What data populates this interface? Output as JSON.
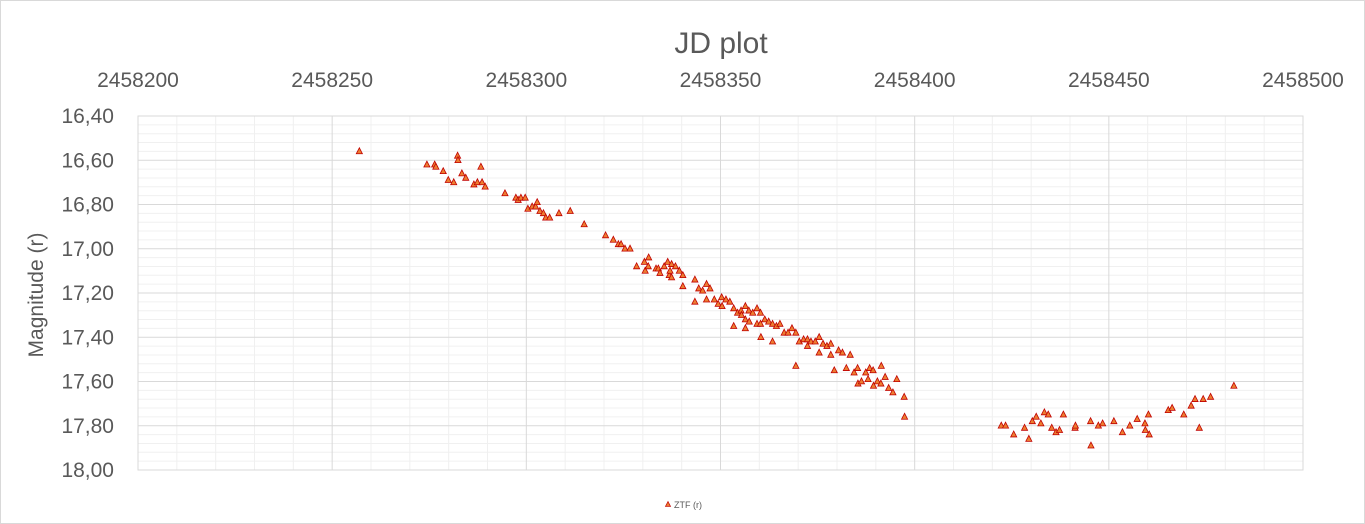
{
  "chart_data": {
    "type": "scatter",
    "title": "JD plot",
    "xlabel": "",
    "ylabel": "Magnitude (r)",
    "x_axis_position": "top",
    "y_axis_reversed": true,
    "xlim": [
      2458200,
      2458500
    ],
    "ylim": [
      16.4,
      18.0
    ],
    "x_ticks": [
      2458200,
      2458250,
      2458300,
      2458350,
      2458400,
      2458450,
      2458500
    ],
    "x_tick_labels": [
      "2458200",
      "2458250",
      "2458300",
      "2458350",
      "2458400",
      "2458450",
      "2458500"
    ],
    "y_ticks": [
      16.4,
      16.6,
      16.8,
      17.0,
      17.2,
      17.4,
      17.6,
      17.8,
      18.0
    ],
    "y_tick_labels": [
      "16,40",
      "16,60",
      "16,80",
      "17,00",
      "17,20",
      "17,40",
      "17,60",
      "17,80",
      "18,00"
    ],
    "grid": true,
    "legend_position": "bottom",
    "series": [
      {
        "name": "ZTF (r)",
        "marker": "triangle",
        "color": "#ed7d31",
        "edge_color": "#c00000",
        "points": [
          [
            2458257.0,
            16.56
          ],
          [
            2458274.4,
            16.62
          ],
          [
            2458276.4,
            16.62
          ],
          [
            2458276.7,
            16.63
          ],
          [
            2458278.6,
            16.65
          ],
          [
            2458279.9,
            16.69
          ],
          [
            2458281.3,
            16.7
          ],
          [
            2458282.3,
            16.58
          ],
          [
            2458282.4,
            16.6
          ],
          [
            2458283.4,
            16.66
          ],
          [
            2458284.4,
            16.68
          ],
          [
            2458286.5,
            16.71
          ],
          [
            2458287.4,
            16.7
          ],
          [
            2458288.3,
            16.63
          ],
          [
            2458288.6,
            16.7
          ],
          [
            2458289.4,
            16.72
          ],
          [
            2458294.5,
            16.75
          ],
          [
            2458297.3,
            16.77
          ],
          [
            2458297.9,
            16.78
          ],
          [
            2458298.6,
            16.77
          ],
          [
            2458299.7,
            16.77
          ],
          [
            2458300.4,
            16.82
          ],
          [
            2458301.5,
            16.81
          ],
          [
            2458302.4,
            16.81
          ],
          [
            2458302.8,
            16.79
          ],
          [
            2458303.5,
            16.83
          ],
          [
            2458304.4,
            16.84
          ],
          [
            2458305.0,
            16.86
          ],
          [
            2458306.0,
            16.86
          ],
          [
            2458308.4,
            16.84
          ],
          [
            2458311.3,
            16.83
          ],
          [
            2458314.9,
            16.89
          ],
          [
            2458320.4,
            16.94
          ],
          [
            2458322.4,
            16.96
          ],
          [
            2458323.7,
            16.98
          ],
          [
            2458324.4,
            16.98
          ],
          [
            2458325.4,
            17.0
          ],
          [
            2458326.7,
            17.0
          ],
          [
            2458328.4,
            17.08
          ],
          [
            2458330.4,
            17.06
          ],
          [
            2458330.6,
            17.1
          ],
          [
            2458331.5,
            17.04
          ],
          [
            2458331.4,
            17.08
          ],
          [
            2458333.4,
            17.09
          ],
          [
            2458334.0,
            17.09
          ],
          [
            2458334.4,
            17.11
          ],
          [
            2458335.5,
            17.08
          ],
          [
            2458336.4,
            17.06
          ],
          [
            2458336.8,
            17.12
          ],
          [
            2458337.0,
            17.1
          ],
          [
            2458337.4,
            17.07
          ],
          [
            2458337.4,
            17.13
          ],
          [
            2458338.4,
            17.08
          ],
          [
            2458339.4,
            17.1
          ],
          [
            2458340.3,
            17.12
          ],
          [
            2458340.3,
            17.17
          ],
          [
            2458343.4,
            17.14
          ],
          [
            2458343.4,
            17.24
          ],
          [
            2458344.4,
            17.18
          ],
          [
            2458345.4,
            17.19
          ],
          [
            2458346.4,
            17.16
          ],
          [
            2458346.4,
            17.23
          ],
          [
            2458347.3,
            17.18
          ],
          [
            2458348.4,
            17.23
          ],
          [
            2458349.4,
            17.25
          ],
          [
            2458350.3,
            17.22
          ],
          [
            2458350.4,
            17.26
          ],
          [
            2458351.4,
            17.23
          ],
          [
            2458352.4,
            17.24
          ],
          [
            2458353.4,
            17.35
          ],
          [
            2458353.4,
            17.27
          ],
          [
            2458354.4,
            17.29
          ],
          [
            2458355.3,
            17.28
          ],
          [
            2458355.4,
            17.3
          ],
          [
            2458356.4,
            17.26
          ],
          [
            2458356.4,
            17.32
          ],
          [
            2458356.4,
            17.36
          ],
          [
            2458357.3,
            17.28
          ],
          [
            2458357.4,
            17.33
          ],
          [
            2458358.3,
            17.29
          ],
          [
            2458359.4,
            17.27
          ],
          [
            2458359.4,
            17.34
          ],
          [
            2458360.3,
            17.29
          ],
          [
            2458360.3,
            17.34
          ],
          [
            2458360.4,
            17.4
          ],
          [
            2458361.4,
            17.32
          ],
          [
            2458362.4,
            17.33
          ],
          [
            2458363.4,
            17.42
          ],
          [
            2458363.4,
            17.34
          ],
          [
            2458364.4,
            17.35
          ],
          [
            2458365.3,
            17.34
          ],
          [
            2458366.4,
            17.38
          ],
          [
            2458367.4,
            17.38
          ],
          [
            2458368.4,
            17.36
          ],
          [
            2458369.4,
            17.38
          ],
          [
            2458369.4,
            17.53
          ],
          [
            2458370.3,
            17.42
          ],
          [
            2458371.4,
            17.41
          ],
          [
            2458372.4,
            17.41
          ],
          [
            2458372.4,
            17.44
          ],
          [
            2458373.3,
            17.42
          ],
          [
            2458374.4,
            17.42
          ],
          [
            2458375.4,
            17.4
          ],
          [
            2458375.4,
            17.47
          ],
          [
            2458376.4,
            17.43
          ],
          [
            2458377.4,
            17.44
          ],
          [
            2458378.4,
            17.43
          ],
          [
            2458378.4,
            17.48
          ],
          [
            2458379.3,
            17.55
          ],
          [
            2458380.4,
            17.46
          ],
          [
            2458381.4,
            17.47
          ],
          [
            2458382.4,
            17.54
          ],
          [
            2458383.4,
            17.48
          ],
          [
            2458384.4,
            17.56
          ],
          [
            2458385.3,
            17.54
          ],
          [
            2458385.4,
            17.61
          ],
          [
            2458386.3,
            17.6
          ],
          [
            2458387.4,
            17.56
          ],
          [
            2458388.0,
            17.59
          ],
          [
            2458388.4,
            17.54
          ],
          [
            2458389.3,
            17.55
          ],
          [
            2458389.4,
            17.62
          ],
          [
            2458390.4,
            17.6
          ],
          [
            2458391.3,
            17.61
          ],
          [
            2458391.4,
            17.53
          ],
          [
            2458392.4,
            17.58
          ],
          [
            2458393.3,
            17.63
          ],
          [
            2458394.4,
            17.65
          ],
          [
            2458395.4,
            17.59
          ],
          [
            2458397.3,
            17.67
          ],
          [
            2458397.4,
            17.76
          ],
          [
            2458422.3,
            17.8
          ],
          [
            2458423.4,
            17.8
          ],
          [
            2458425.5,
            17.84
          ],
          [
            2458428.3,
            17.81
          ],
          [
            2458429.4,
            17.86
          ],
          [
            2458430.3,
            17.78
          ],
          [
            2458431.3,
            17.76
          ],
          [
            2458432.5,
            17.79
          ],
          [
            2458433.4,
            17.74
          ],
          [
            2458434.4,
            17.75
          ],
          [
            2458435.3,
            17.81
          ],
          [
            2458436.4,
            17.83
          ],
          [
            2458437.3,
            17.82
          ],
          [
            2458438.3,
            17.75
          ],
          [
            2458441.3,
            17.81
          ],
          [
            2458441.4,
            17.8
          ],
          [
            2458445.3,
            17.78
          ],
          [
            2458445.4,
            17.89
          ],
          [
            2458447.3,
            17.8
          ],
          [
            2458448.4,
            17.79
          ],
          [
            2458451.3,
            17.78
          ],
          [
            2458453.5,
            17.83
          ],
          [
            2458455.4,
            17.8
          ],
          [
            2458457.3,
            17.77
          ],
          [
            2458459.3,
            17.79
          ],
          [
            2458459.4,
            17.82
          ],
          [
            2458460.2,
            17.75
          ],
          [
            2458460.4,
            17.84
          ],
          [
            2458465.3,
            17.73
          ],
          [
            2458466.3,
            17.72
          ],
          [
            2458469.3,
            17.75
          ],
          [
            2458471.2,
            17.71
          ],
          [
            2458472.2,
            17.68
          ],
          [
            2458473.3,
            17.81
          ],
          [
            2458474.3,
            17.68
          ],
          [
            2458476.2,
            17.67
          ],
          [
            2458482.2,
            17.62
          ]
        ]
      }
    ]
  }
}
